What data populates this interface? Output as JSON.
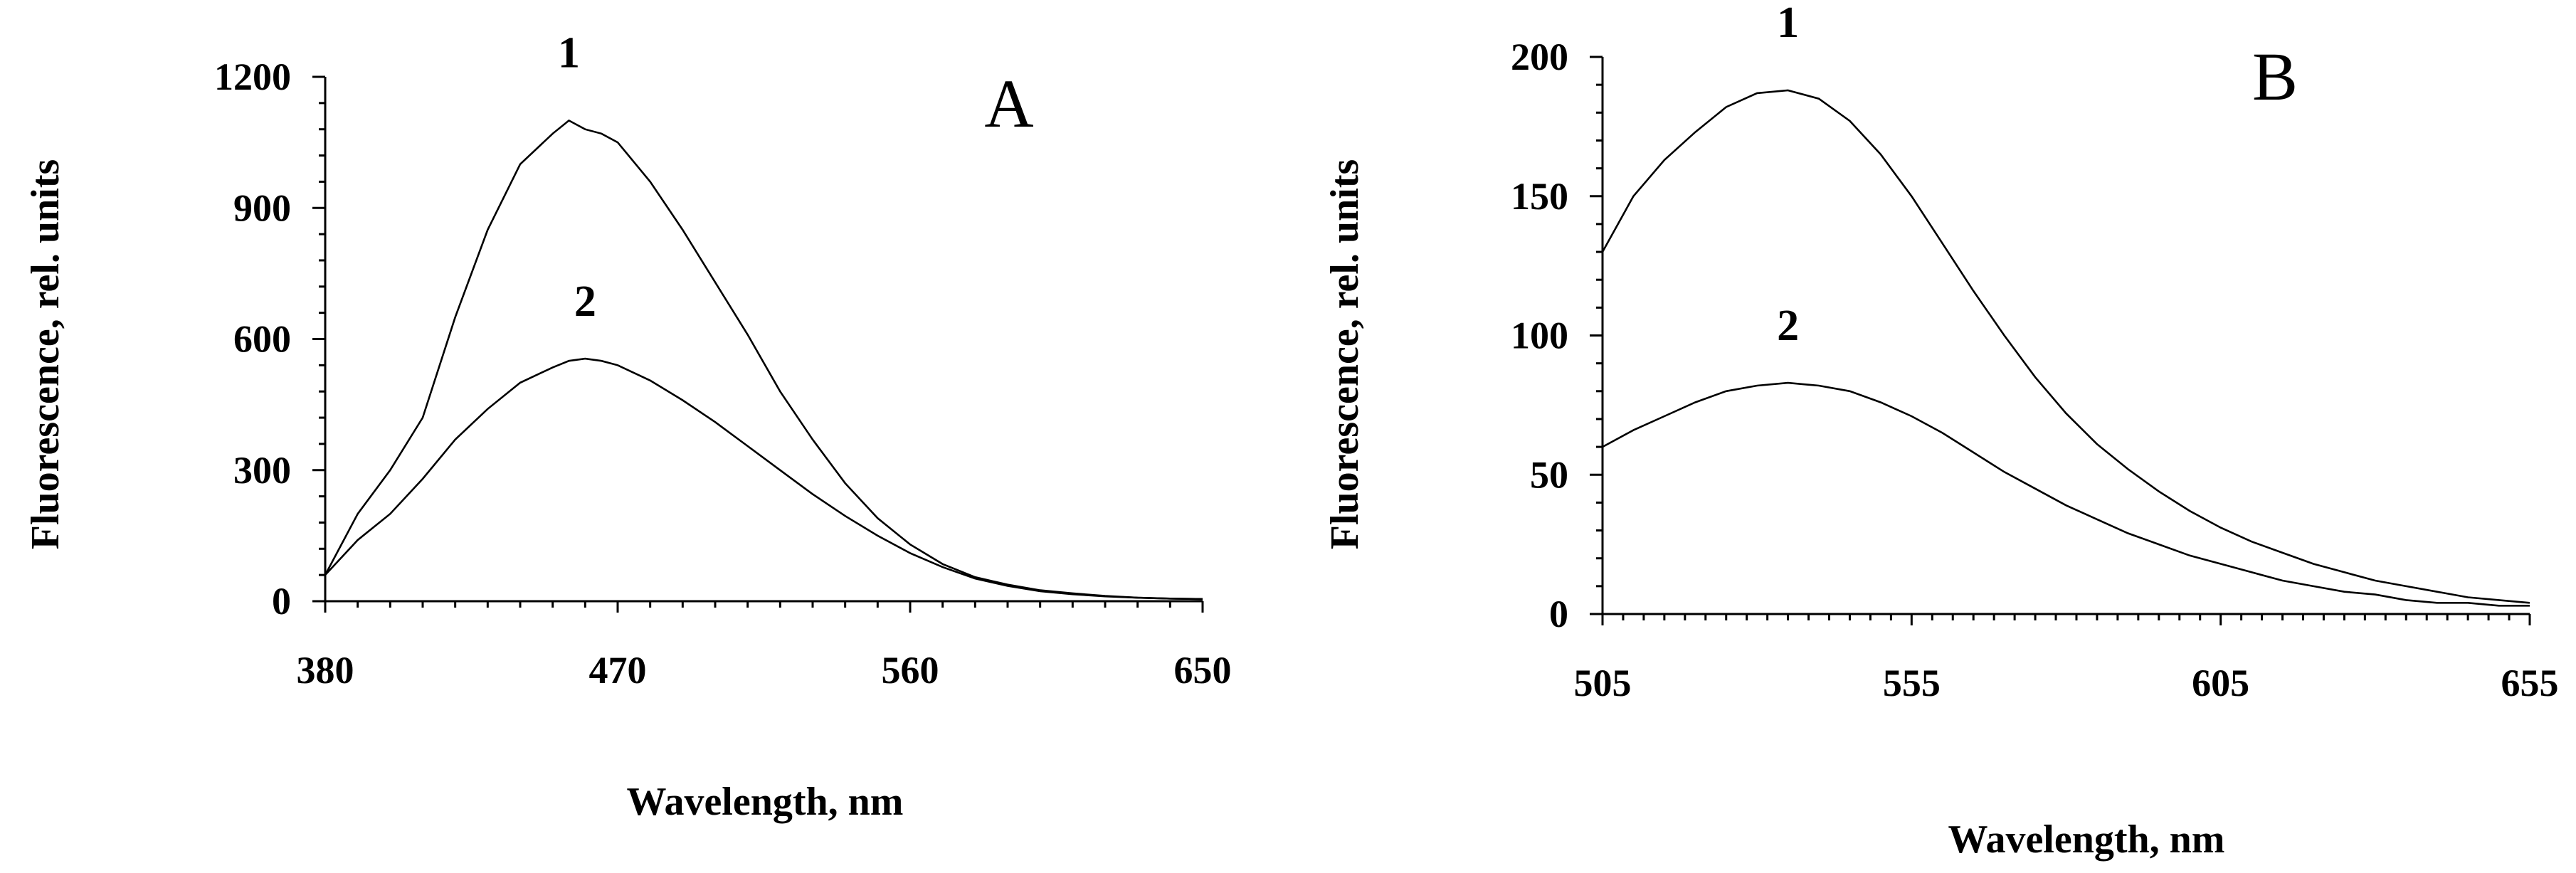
{
  "chart_data": [
    {
      "type": "line",
      "panel_label": "A",
      "xlabel": "Wavelength, nm",
      "ylabel": "Fluorescence, rel. units",
      "xlim": [
        380,
        650
      ],
      "ylim": [
        0,
        1200
      ],
      "xticks": [
        380,
        470,
        560,
        650
      ],
      "yticks": [
        0,
        300,
        600,
        900,
        1200
      ],
      "grid": false,
      "x": [
        380,
        390,
        400,
        410,
        420,
        430,
        440,
        450,
        455,
        460,
        465,
        470,
        480,
        490,
        500,
        510,
        520,
        530,
        540,
        550,
        560,
        570,
        580,
        590,
        600,
        610,
        620,
        630,
        640,
        650
      ],
      "series": [
        {
          "name": "1",
          "values": [
            60,
            200,
            300,
            420,
            650,
            850,
            1000,
            1070,
            1100,
            1080,
            1070,
            1050,
            960,
            850,
            730,
            610,
            480,
            370,
            270,
            190,
            130,
            85,
            55,
            38,
            25,
            18,
            12,
            8,
            6,
            5
          ]
        },
        {
          "name": "2",
          "values": [
            60,
            140,
            200,
            280,
            370,
            440,
            500,
            535,
            550,
            555,
            550,
            540,
            505,
            460,
            410,
            355,
            300,
            245,
            195,
            150,
            110,
            78,
            52,
            35,
            23,
            16,
            11,
            8,
            6,
            5
          ]
        }
      ]
    },
    {
      "type": "line",
      "panel_label": "B",
      "xlabel": "Wavelength, nm",
      "ylabel": "Fluorescence, rel. units",
      "xlim": [
        505,
        655
      ],
      "ylim": [
        0,
        200
      ],
      "xticks": [
        505,
        555,
        605,
        655
      ],
      "yticks": [
        0,
        50,
        100,
        150,
        200
      ],
      "grid": false,
      "x": [
        505,
        510,
        515,
        520,
        525,
        530,
        535,
        540,
        545,
        550,
        555,
        560,
        565,
        570,
        575,
        580,
        585,
        590,
        595,
        600,
        605,
        610,
        615,
        620,
        625,
        630,
        635,
        640,
        645,
        650,
        655
      ],
      "series": [
        {
          "name": "1",
          "values": [
            130,
            150,
            163,
            173,
            182,
            187,
            188,
            185,
            177,
            165,
            150,
            133,
            116,
            100,
            85,
            72,
            61,
            52,
            44,
            37,
            31,
            26,
            22,
            18,
            15,
            12,
            10,
            8,
            6,
            5,
            4
          ]
        },
        {
          "name": "2",
          "values": [
            60,
            66,
            71,
            76,
            80,
            82,
            83,
            82,
            80,
            76,
            71,
            65,
            58,
            51,
            45,
            39,
            34,
            29,
            25,
            21,
            18,
            15,
            12,
            10,
            8,
            7,
            5,
            4,
            4,
            3,
            3
          ]
        }
      ]
    }
  ]
}
